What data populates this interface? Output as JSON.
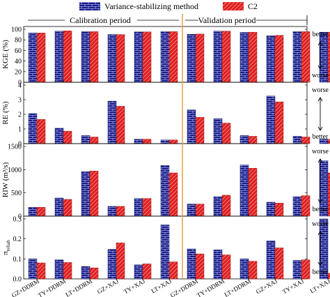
{
  "legend": {
    "items": [
      {
        "label": "Variance-stabilizing method",
        "color": "#1a1f8c",
        "pattern": "brick"
      },
      {
        "label": "C2",
        "color": "#e02020",
        "pattern": "hatch"
      }
    ]
  },
  "periods": {
    "calibration": "Calibration period",
    "validation": "Validation period"
  },
  "colors": {
    "series1": "#1a1f8c",
    "series2": "#e02020",
    "divider": "#e8a040"
  },
  "chart_data": [
    {
      "type": "bar",
      "ylabel": "KGE (%)",
      "ylim": [
        0,
        100
      ],
      "yticks": [
        0,
        20,
        40,
        60,
        80,
        100
      ],
      "ytick_labels": [
        "0",
        "20",
        "40",
        "60",
        "80",
        "100"
      ],
      "arrow": {
        "top": "better",
        "bottom": "worse"
      },
      "categories": [
        "GZ+DDRM",
        "TY+DDRM",
        "LT+DDRM",
        "GZ+XAJ",
        "TY+XAJ",
        "LT+XAJ"
      ],
      "series": [
        {
          "name": "Variance-stabilizing method",
          "calibration": [
            93,
            96.5,
            95.5,
            90,
            95,
            95.5
          ],
          "validation": [
            90.5,
            96.5,
            94,
            88,
            95.5,
            94.5
          ]
        },
        {
          "name": "C2",
          "calibration": [
            93,
            97,
            95.5,
            90,
            95,
            95.5
          ],
          "validation": [
            91,
            96.5,
            94.5,
            88.5,
            95.5,
            94.5
          ]
        }
      ]
    },
    {
      "type": "bar",
      "ylabel": "RE (%)",
      "ylim": [
        0,
        4
      ],
      "yticks": [
        0,
        1,
        2,
        3,
        4
      ],
      "ytick_labels": [
        "0",
        "1",
        "2",
        "3",
        "4"
      ],
      "arrow": {
        "top": "worse",
        "bottom": "better"
      },
      "categories": [
        "GZ+DDRM",
        "TY+DDRM",
        "LT+DDRM",
        "GZ+XAJ",
        "TY+XAJ",
        "LT+XAJ"
      ],
      "series": [
        {
          "name": "Variance-stabilizing method",
          "calibration": [
            2.05,
            1.05,
            0.55,
            2.9,
            0.3,
            0.25
          ],
          "validation": [
            2.3,
            1.7,
            0.55,
            3.25,
            0.5,
            0.3
          ]
        },
        {
          "name": "C2",
          "calibration": [
            1.65,
            0.85,
            0.45,
            2.55,
            0.3,
            0.25
          ],
          "validation": [
            1.8,
            1.4,
            0.5,
            2.85,
            0.45,
            0.3
          ]
        }
      ]
    },
    {
      "type": "bar",
      "ylabel": "RIW (m³/s)",
      "ylim": [
        0,
        1500
      ],
      "yticks": [
        0,
        500,
        1000,
        1500
      ],
      "ytick_labels": [
        "0",
        "500",
        "1000",
        "1500"
      ],
      "arrow": {
        "top": "worse",
        "bottom": "better"
      },
      "categories": [
        "GZ+DDRM",
        "TY+DDRM",
        "LT+DDRM",
        "GZ+XAJ",
        "TY+XAJ",
        "LT+XAJ"
      ],
      "series": [
        {
          "name": "Variance-stabilizing method",
          "calibration": [
            190,
            390,
            960,
            210,
            380,
            1090
          ],
          "validation": [
            260,
            420,
            1100,
            300,
            420,
            1190
          ]
        },
        {
          "name": "C2",
          "calibration": [
            190,
            360,
            970,
            210,
            380,
            930
          ],
          "validation": [
            260,
            450,
            1030,
            280,
            440,
            930
          ]
        }
      ]
    },
    {
      "type": "bar",
      "ylabel": "π",
      "ylabel_sub": "reliab",
      "ylim": [
        0,
        0.3
      ],
      "yticks": [
        0,
        0.1,
        0.2,
        0.3
      ],
      "ytick_labels": [
        "0.0",
        "0.1",
        "0.2",
        "0.3"
      ],
      "arrow": {
        "top": "worse",
        "bottom": "better"
      },
      "categories": [
        "GZ+DDRM",
        "TY+DDRM",
        "LT+DDRM",
        "GZ+XAJ",
        "TY+XAJ",
        "LT+XAJ"
      ],
      "series": [
        {
          "name": "Variance-stabilizing method",
          "calibration": [
            0.1,
            0.095,
            0.062,
            0.148,
            0.07,
            0.27
          ],
          "validation": [
            0.15,
            0.145,
            0.1,
            0.19,
            0.092,
            0.3
          ]
        },
        {
          "name": "C2",
          "calibration": [
            0.08,
            0.082,
            0.055,
            0.18,
            0.075,
            0.085
          ],
          "validation": [
            0.125,
            0.12,
            0.088,
            0.155,
            0.095,
            0.028
          ]
        }
      ]
    }
  ]
}
